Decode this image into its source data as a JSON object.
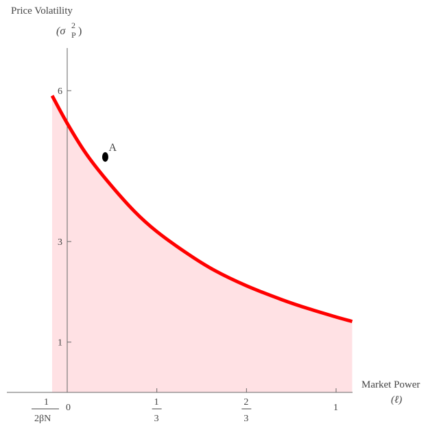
{
  "chart_data": {
    "type": "area",
    "ylabel": "Price Volatility",
    "ylabel_symbol": "(σ",
    "ylabel_sup": "2",
    "ylabel_sub": "P",
    "ylabel_close": ")",
    "xlabel": "Market Power",
    "xlabel_symbol": "(ℓ)",
    "xlim": [
      -0.06,
      1.06
    ],
    "ylim": [
      0,
      6.5
    ],
    "x_ticks": [
      {
        "value": 0.3333,
        "num": "1",
        "den": "3"
      },
      {
        "value": 0.6667,
        "num": "2",
        "den": "3"
      },
      {
        "value": 1.0,
        "plain": "1"
      }
    ],
    "x_tick_zero": "0",
    "x_tick_left": {
      "value": -0.056,
      "num": "1",
      "den": "2βN"
    },
    "y_ticks": [
      {
        "value": 1,
        "label": "1"
      },
      {
        "value": 3,
        "label": "3"
      },
      {
        "value": 6,
        "label": "6"
      }
    ],
    "curve": {
      "x_start": -0.056,
      "x_end": 1.06,
      "points": [
        [
          -0.056,
          5.9
        ],
        [
          0.0,
          5.35
        ],
        [
          0.07,
          4.75
        ],
        [
          0.15,
          4.2
        ],
        [
          0.25,
          3.6
        ],
        [
          0.333,
          3.2
        ],
        [
          0.45,
          2.75
        ],
        [
          0.55,
          2.42
        ],
        [
          0.6667,
          2.12
        ],
        [
          0.8,
          1.84
        ],
        [
          0.9,
          1.66
        ],
        [
          1.0,
          1.5
        ],
        [
          1.06,
          1.41
        ]
      ],
      "color": "#ff0000",
      "fill_color": "#ffe1e4"
    },
    "point_A": {
      "label": "A",
      "x": 0.07,
      "y": 4.75,
      "color": "#000000"
    }
  }
}
